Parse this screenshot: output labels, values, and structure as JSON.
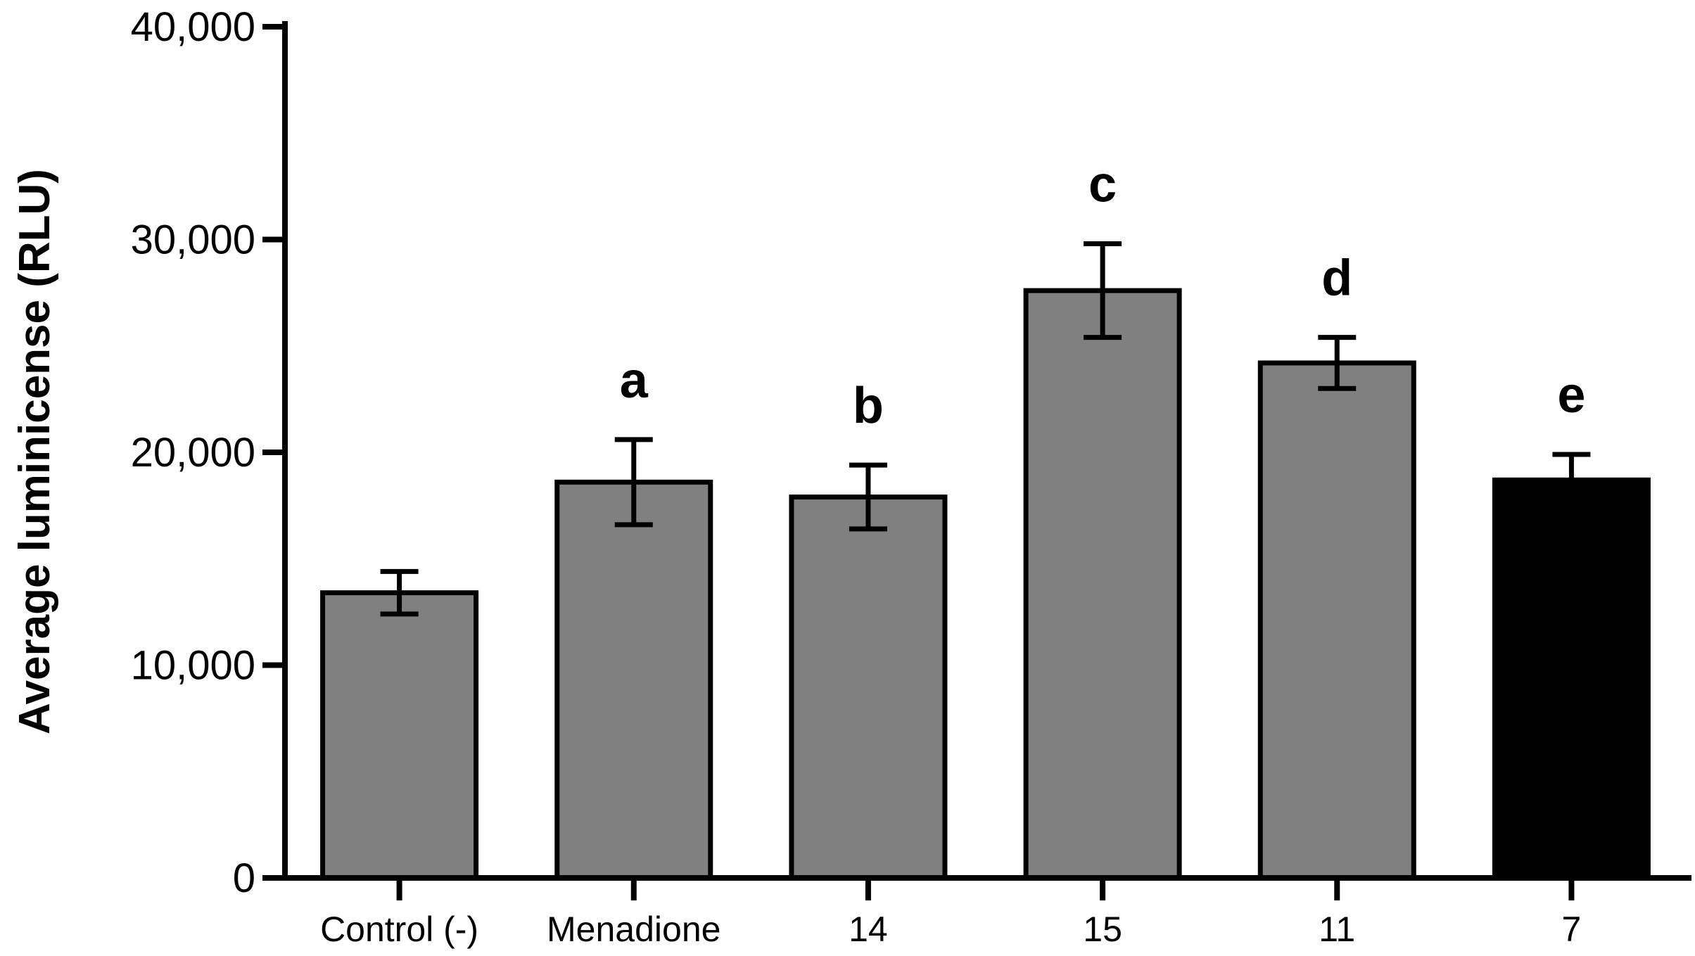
{
  "chart_data": {
    "type": "bar",
    "title": "",
    "xlabel": "",
    "ylabel": "Average luminicense (RLU)",
    "ylim": [
      0,
      40000
    ],
    "yticks": [
      0,
      10000,
      20000,
      30000,
      40000
    ],
    "ytick_labels": [
      "0",
      "10,000",
      "20,000",
      "30,000",
      "40,000"
    ],
    "grid": false,
    "categories": [
      "Control (-)",
      "Menadione",
      "14",
      "15",
      "11",
      "7"
    ],
    "values": [
      13400,
      18600,
      17900,
      27600,
      24200,
      18700
    ],
    "errors": [
      1000,
      2000,
      1500,
      2200,
      1200,
      1200
    ],
    "annotations": [
      "",
      "a",
      "b",
      "c",
      "d",
      "e"
    ],
    "colors": [
      "#808080",
      "#808080",
      "#808080",
      "#808080",
      "#808080",
      "#000000"
    ]
  }
}
